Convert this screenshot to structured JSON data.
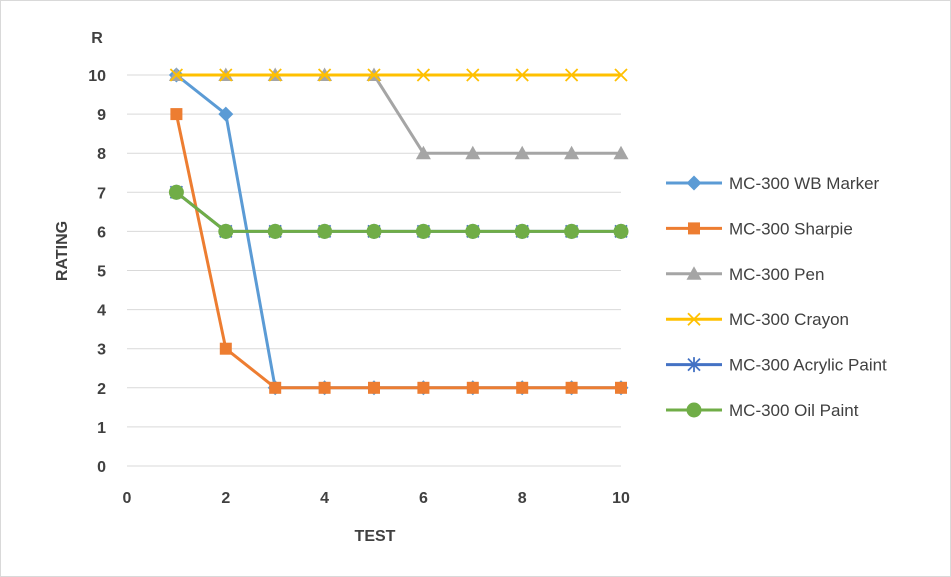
{
  "chart_data": {
    "type": "line",
    "xlabel": "TEST",
    "ylabel": "RATING",
    "ylabel_extra": "R",
    "xlim": [
      0,
      10
    ],
    "ylim": [
      0,
      10
    ],
    "x_ticks": [
      0,
      2,
      4,
      6,
      8,
      10
    ],
    "y_ticks": [
      0,
      1,
      2,
      3,
      4,
      5,
      6,
      7,
      8,
      9,
      10
    ],
    "grid": "horizontal",
    "legend_position": "right",
    "x": [
      1,
      2,
      3,
      4,
      5,
      6,
      7,
      8,
      9,
      10
    ],
    "series": [
      {
        "name": "MC-300 WB Marker",
        "color": "#5b9bd5",
        "marker": "diamond",
        "values": [
          10,
          9,
          2,
          2,
          2,
          2,
          2,
          2,
          2,
          2
        ]
      },
      {
        "name": "MC-300 Sharpie",
        "color": "#ed7d31",
        "marker": "square",
        "values": [
          9,
          3,
          2,
          2,
          2,
          2,
          2,
          2,
          2,
          2
        ]
      },
      {
        "name": "MC-300 Pen",
        "color": "#a5a5a5",
        "marker": "triangle",
        "values": [
          10,
          10,
          10,
          10,
          10,
          8,
          8,
          8,
          8,
          8
        ]
      },
      {
        "name": "MC-300 Crayon",
        "color": "#ffc000",
        "marker": "x",
        "values": [
          10,
          10,
          10,
          10,
          10,
          10,
          10,
          10,
          10,
          10
        ]
      },
      {
        "name": "MC-300 Acrylic Paint",
        "color": "#4472c4",
        "marker": "star",
        "values": [
          7,
          6,
          6,
          6,
          6,
          6,
          6,
          6,
          6,
          6
        ]
      },
      {
        "name": "MC-300 Oil Paint",
        "color": "#70ad47",
        "marker": "circle",
        "values": [
          7,
          6,
          6,
          6,
          6,
          6,
          6,
          6,
          6,
          6
        ]
      }
    ]
  }
}
